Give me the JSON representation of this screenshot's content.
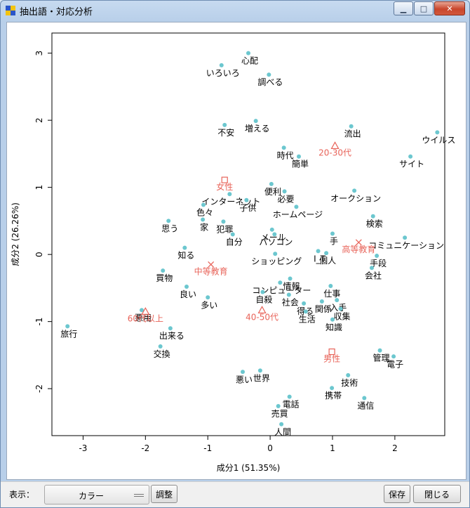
{
  "window": {
    "title": "抽出語・対応分析",
    "minimize_glyph": "▁",
    "maximize_glyph": "□",
    "close_glyph": "✕"
  },
  "toolbar": {
    "display_label": "表示：",
    "display_value": "カラー",
    "adjust_label": "調整",
    "save_label": "保存",
    "close_label": "閉じる"
  },
  "colors": {
    "point": "#6cc7cf",
    "variable": "#e8645a",
    "text": "#000000"
  },
  "chart_data": {
    "type": "scatter",
    "xlabel": "成分1 (51.35%)",
    "ylabel": "成分2 (26.26%)",
    "xlim": [
      -3.5,
      2.8
    ],
    "ylim": [
      -2.7,
      3.3
    ],
    "xticks": [
      -3,
      -2,
      -1,
      0,
      1,
      2
    ],
    "yticks": [
      -2,
      -1,
      0,
      1,
      2,
      3
    ],
    "grid": false,
    "words": [
      {
        "label": "心配",
        "x": -0.35,
        "y": 3.0
      },
      {
        "label": "いろいろ",
        "x": -0.78,
        "y": 2.82
      },
      {
        "label": "調べる",
        "x": -0.02,
        "y": 2.68
      },
      {
        "label": "不安",
        "x": -0.73,
        "y": 1.93
      },
      {
        "label": "増える",
        "x": -0.23,
        "y": 1.99
      },
      {
        "label": "流出",
        "x": 1.3,
        "y": 1.91
      },
      {
        "label": "ウイルス",
        "x": 2.68,
        "y": 1.82
      },
      {
        "label": "時代",
        "x": 0.22,
        "y": 1.59
      },
      {
        "label": "簡単",
        "x": 0.46,
        "y": 1.46
      },
      {
        "label": "サイト",
        "x": 2.25,
        "y": 1.46
      },
      {
        "label": "便利",
        "x": 0.02,
        "y": 1.05
      },
      {
        "label": "インターネット",
        "x": -0.65,
        "y": 0.9
      },
      {
        "label": "子供",
        "x": -0.38,
        "y": 0.81
      },
      {
        "label": "必要",
        "x": 0.23,
        "y": 0.94
      },
      {
        "label": "オークション",
        "x": 1.35,
        "y": 0.95
      },
      {
        "label": "色々",
        "x": -1.07,
        "y": 0.74
      },
      {
        "label": "ホームページ",
        "x": 0.42,
        "y": 0.71
      },
      {
        "label": "検索",
        "x": 1.65,
        "y": 0.57
      },
      {
        "label": "家",
        "x": -1.08,
        "y": 0.52
      },
      {
        "label": "思う",
        "x": -1.63,
        "y": 0.5
      },
      {
        "label": "犯罪",
        "x": -0.75,
        "y": 0.49
      },
      {
        "label": "メール",
        "x": 0.03,
        "y": 0.37
      },
      {
        "label": "パソコン",
        "x": 0.07,
        "y": 0.3
      },
      {
        "label": "手",
        "x": 1.0,
        "y": 0.31
      },
      {
        "label": "コミュニケーション",
        "x": 2.16,
        "y": 0.25
      },
      {
        "label": "自分",
        "x": -0.6,
        "y": 0.3
      },
      {
        "label": "知る",
        "x": -1.37,
        "y": 0.1
      },
      {
        "label": "I_T",
        "x": 0.77,
        "y": 0.05
      },
      {
        "label": "個人",
        "x": 0.9,
        "y": 0.02
      },
      {
        "label": "ショッピング",
        "x": 0.08,
        "y": 0.01
      },
      {
        "label": "手段",
        "x": 1.71,
        "y": -0.02
      },
      {
        "label": "買物",
        "x": -1.72,
        "y": -0.24
      },
      {
        "label": "会社",
        "x": 1.63,
        "y": -0.2
      },
      {
        "label": "コンピューター",
        "x": 0.16,
        "y": -0.42
      },
      {
        "label": "情報",
        "x": 0.32,
        "y": -0.36
      },
      {
        "label": "良い",
        "x": -1.34,
        "y": -0.48
      },
      {
        "label": "仕事",
        "x": 0.97,
        "y": -0.47
      },
      {
        "label": "自殺",
        "x": -0.12,
        "y": -0.56
      },
      {
        "label": "社会",
        "x": 0.3,
        "y": -0.6
      },
      {
        "label": "多い",
        "x": -1.0,
        "y": -0.64
      },
      {
        "label": "入手",
        "x": 1.07,
        "y": -0.68
      },
      {
        "label": "得る",
        "x": 0.54,
        "y": -0.73
      },
      {
        "label": "関係",
        "x": 0.83,
        "y": -0.7
      },
      {
        "label": "悪用",
        "x": -2.06,
        "y": -0.83
      },
      {
        "label": "収集",
        "x": 1.13,
        "y": -0.81
      },
      {
        "label": "生活",
        "x": 0.57,
        "y": -0.85
      },
      {
        "label": "知識",
        "x": 1.0,
        "y": -0.97
      },
      {
        "label": "旅行",
        "x": -3.25,
        "y": -1.07
      },
      {
        "label": "出来る",
        "x": -1.6,
        "y": -1.1
      },
      {
        "label": "交換",
        "x": -1.76,
        "y": -1.37
      },
      {
        "label": "電子",
        "x": 1.98,
        "y": -1.52
      },
      {
        "label": "管理",
        "x": 1.76,
        "y": -1.43
      },
      {
        "label": "悪い",
        "x": -0.44,
        "y": -1.75
      },
      {
        "label": "世界",
        "x": -0.16,
        "y": -1.73
      },
      {
        "label": "技術",
        "x": 1.25,
        "y": -1.8
      },
      {
        "label": "携帯",
        "x": 0.99,
        "y": -1.99
      },
      {
        "label": "電話",
        "x": 0.31,
        "y": -2.12
      },
      {
        "label": "通信",
        "x": 1.51,
        "y": -2.14
      },
      {
        "label": "売買",
        "x": 0.13,
        "y": -2.26
      },
      {
        "label": "人間",
        "x": 0.18,
        "y": -2.53
      }
    ],
    "variables": [
      {
        "label": "20-30代",
        "x": 1.04,
        "y": 1.62,
        "marker": "triangle"
      },
      {
        "label": "女性",
        "x": -0.73,
        "y": 1.11,
        "marker": "square"
      },
      {
        "label": "高等教育",
        "x": 1.42,
        "y": 0.18,
        "marker": "cross"
      },
      {
        "label": "中等教育",
        "x": -0.95,
        "y": -0.15,
        "marker": "cross"
      },
      {
        "label": "40-50代",
        "x": -0.13,
        "y": -0.83,
        "marker": "triangle"
      },
      {
        "label": "60代以上",
        "x": -2.0,
        "y": -0.85,
        "marker": "triangle"
      },
      {
        "label": "男性",
        "x": 0.99,
        "y": -1.45,
        "marker": "square"
      }
    ]
  }
}
